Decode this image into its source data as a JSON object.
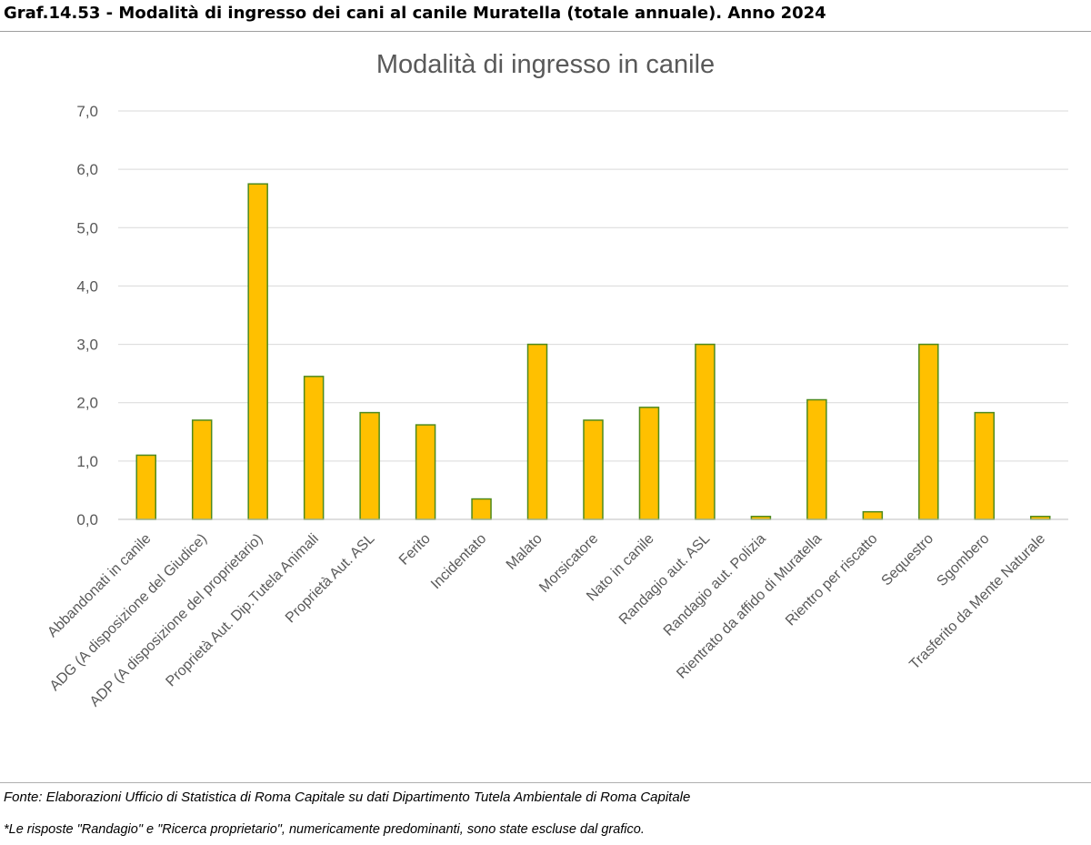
{
  "heading": "Graf.14.53 -  Modalità di ingresso dei cani al canile Muratella (totale annuale). Anno 2024",
  "source_note": "Fonte: Elaborazioni Ufficio di Statistica di Roma Capitale su dati Dipartimento Tutela Ambientale di Roma Capitale",
  "footnote": "*Le risposte \"Randagio\" e \"Ricerca proprietario\", numericamente predominanti, sono state escluse dal grafico.",
  "colors": {
    "bar_fill": "#FFC000",
    "bar_stroke": "#4E8A1E",
    "grid": "#d9d9d9",
    "axis_text": "#595959"
  },
  "chart_data": {
    "type": "bar",
    "title": "Modalità di ingresso in canile",
    "xlabel": "",
    "ylabel": "",
    "ylim": [
      0,
      7
    ],
    "ytick_labels": [
      "0,0",
      "1,0",
      "2,0",
      "3,0",
      "4,0",
      "5,0",
      "6,0",
      "7,0"
    ],
    "grid": true,
    "legend": "none",
    "categories": [
      "Abbandonati in canile",
      "ADG (A disposizione del Giudice)",
      "ADP (A disposizione del proprietario)",
      "Proprietà Aut. Dip.Tutela Animali",
      "Proprietà Aut. ASL",
      "Ferito",
      "Incidentato",
      "Malato",
      "Morsicatore",
      "Nato in canile",
      "Randagio aut. ASL",
      "Randagio aut. Polizia",
      "Rientrato da affido di Muratella",
      "Rientro per riscatto",
      "Sequestro",
      "Sgombero",
      "Trasferito da Mente Naturale"
    ],
    "values": [
      1.1,
      1.7,
      5.75,
      2.45,
      1.83,
      1.62,
      0.35,
      3.0,
      1.7,
      1.92,
      3.0,
      0.05,
      2.05,
      0.13,
      3.0,
      1.83,
      0.05
    ]
  }
}
